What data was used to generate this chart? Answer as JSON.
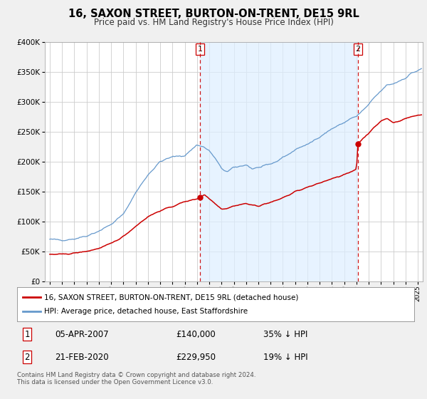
{
  "title": "16, SAXON STREET, BURTON-ON-TRENT, DE15 9RL",
  "subtitle": "Price paid vs. HM Land Registry's House Price Index (HPI)",
  "legend_label_red": "16, SAXON STREET, BURTON-ON-TRENT, DE15 9RL (detached house)",
  "legend_label_blue": "HPI: Average price, detached house, East Staffordshire",
  "transaction1_date": "05-APR-2007",
  "transaction1_price": "£140,000",
  "transaction1_hpi": "35% ↓ HPI",
  "transaction2_date": "21-FEB-2020",
  "transaction2_price": "£229,950",
  "transaction2_hpi": "19% ↓ HPI",
  "footer": "Contains HM Land Registry data © Crown copyright and database right 2024.\nThis data is licensed under the Open Government Licence v3.0.",
  "ylim": [
    0,
    400000
  ],
  "xlim_left": 1994.6,
  "xlim_right": 2025.4,
  "red_color": "#cc0000",
  "blue_color": "#6699cc",
  "shade_color": "#ddeeff",
  "vline_color": "#cc0000",
  "marker1_x": 2007.25,
  "marker1_y": 140000,
  "marker2_x": 2020.12,
  "marker2_y": 229950,
  "background_color": "#f0f0f0",
  "plot_bg_color": "#ffffff",
  "grid_color": "#cccccc"
}
